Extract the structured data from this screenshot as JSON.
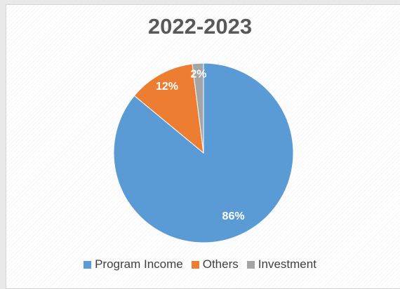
{
  "chart_data": {
    "type": "pie",
    "title": "2022-2023",
    "slices": [
      {
        "name": "Program Income",
        "value": 86,
        "label": "86%",
        "color": "#5b9bd5"
      },
      {
        "name": "Others",
        "value": 12,
        "label": "12%",
        "color": "#ed7d31"
      },
      {
        "name": "Investment",
        "value": 2,
        "label": "2%",
        "color": "#a5a5a5"
      }
    ],
    "legend_position": "bottom"
  }
}
